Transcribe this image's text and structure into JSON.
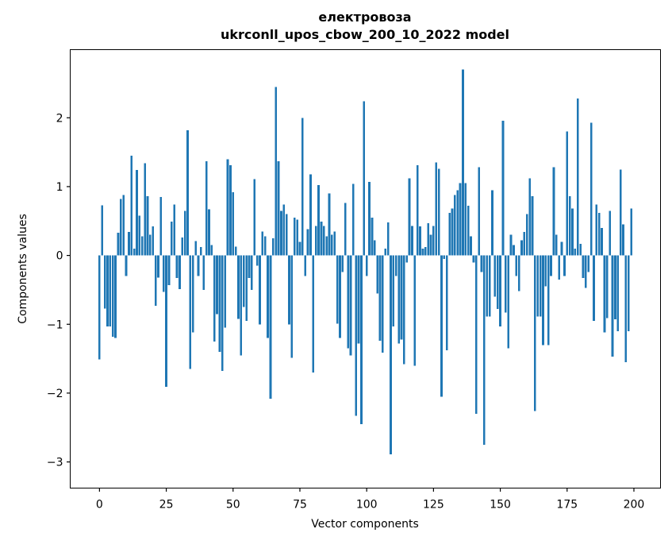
{
  "figure": {
    "background_color": "#ffffff"
  },
  "chart_data": {
    "type": "bar",
    "title_line1": "електровоза",
    "title_line2": "ukrconll_upos_cbow_200_10_2022 model",
    "xlabel": "Vector components",
    "ylabel": "Components values",
    "bar_color": "#1f77b4",
    "spine_color": "#000000",
    "grid": "off",
    "legend": "none",
    "x_tick_values": [
      0,
      25,
      50,
      75,
      100,
      125,
      150,
      175,
      200
    ],
    "y_tick_values": [
      2,
      1,
      0,
      -1,
      -2,
      -3
    ],
    "xlim": [
      -10.95,
      209.95
    ],
    "ylim": [
      -3.38,
      2.99
    ],
    "x_range_note": "bars at integer x positions 0..199, bar width 0.8",
    "values": [
      -1.51,
      0.73,
      -0.77,
      -1.03,
      -1.03,
      -1.18,
      -1.2,
      0.33,
      0.82,
      0.88,
      -0.3,
      0.34,
      1.45,
      0.1,
      1.24,
      0.58,
      0.28,
      1.34,
      0.86,
      0.3,
      0.42,
      -0.73,
      -0.32,
      0.85,
      -0.53,
      -1.91,
      -0.43,
      0.49,
      0.74,
      -0.33,
      -0.49,
      0.26,
      0.65,
      1.82,
      -1.65,
      -1.12,
      0.21,
      -0.3,
      0.12,
      -0.5,
      1.37,
      0.67,
      0.15,
      -1.25,
      -0.85,
      -1.4,
      -1.68,
      -1.05,
      1.4,
      1.31,
      0.92,
      0.13,
      -0.92,
      -1.45,
      -0.75,
      -0.95,
      -0.33,
      -0.5,
      1.11,
      -0.15,
      -1.0,
      0.35,
      0.28,
      -1.2,
      -2.08,
      0.25,
      2.45,
      1.37,
      0.65,
      0.74,
      0.6,
      -1.0,
      -1.49,
      0.55,
      0.52,
      0.2,
      2.0,
      -0.3,
      0.38,
      1.18,
      -1.7,
      0.43,
      1.02,
      0.49,
      0.43,
      0.28,
      0.9,
      0.3,
      0.35,
      -0.99,
      -1.2,
      -0.24,
      0.76,
      -1.35,
      -1.45,
      1.04,
      -2.33,
      -1.28,
      -2.45,
      2.24,
      -0.3,
      1.07,
      0.55,
      0.22,
      -0.55,
      -1.24,
      -1.41,
      0.1,
      0.48,
      -2.89,
      -1.03,
      -0.3,
      -1.28,
      -1.22,
      -1.58,
      -0.1,
      1.12,
      0.43,
      -1.6,
      1.31,
      0.42,
      0.1,
      0.12,
      0.47,
      0.3,
      0.43,
      1.35,
      1.26,
      -2.05,
      -0.05,
      -1.38,
      0.62,
      0.68,
      0.88,
      0.95,
      1.05,
      2.7,
      1.05,
      0.72,
      0.28,
      -0.1,
      -2.3,
      1.28,
      -0.24,
      -2.75,
      -0.89,
      -0.89,
      0.95,
      -0.6,
      -0.78,
      -1.03,
      1.96,
      -0.83,
      -1.35,
      0.3,
      0.15,
      -0.3,
      -0.52,
      0.22,
      0.34,
      0.6,
      1.12,
      0.86,
      -2.26,
      -0.89,
      -0.89,
      -1.3,
      -0.45,
      -1.3,
      -0.3,
      1.28,
      0.3,
      -0.35,
      0.2,
      -0.3,
      1.8,
      0.86,
      0.68,
      0.1,
      2.28,
      0.17,
      -0.33,
      -0.47,
      -0.24,
      1.93,
      -0.95,
      0.74,
      0.62,
      0.4,
      -1.12,
      -0.91,
      0.65,
      -1.47,
      -0.93,
      -1.1,
      1.25,
      0.45,
      -1.55,
      -1.1,
      0.68
    ]
  }
}
